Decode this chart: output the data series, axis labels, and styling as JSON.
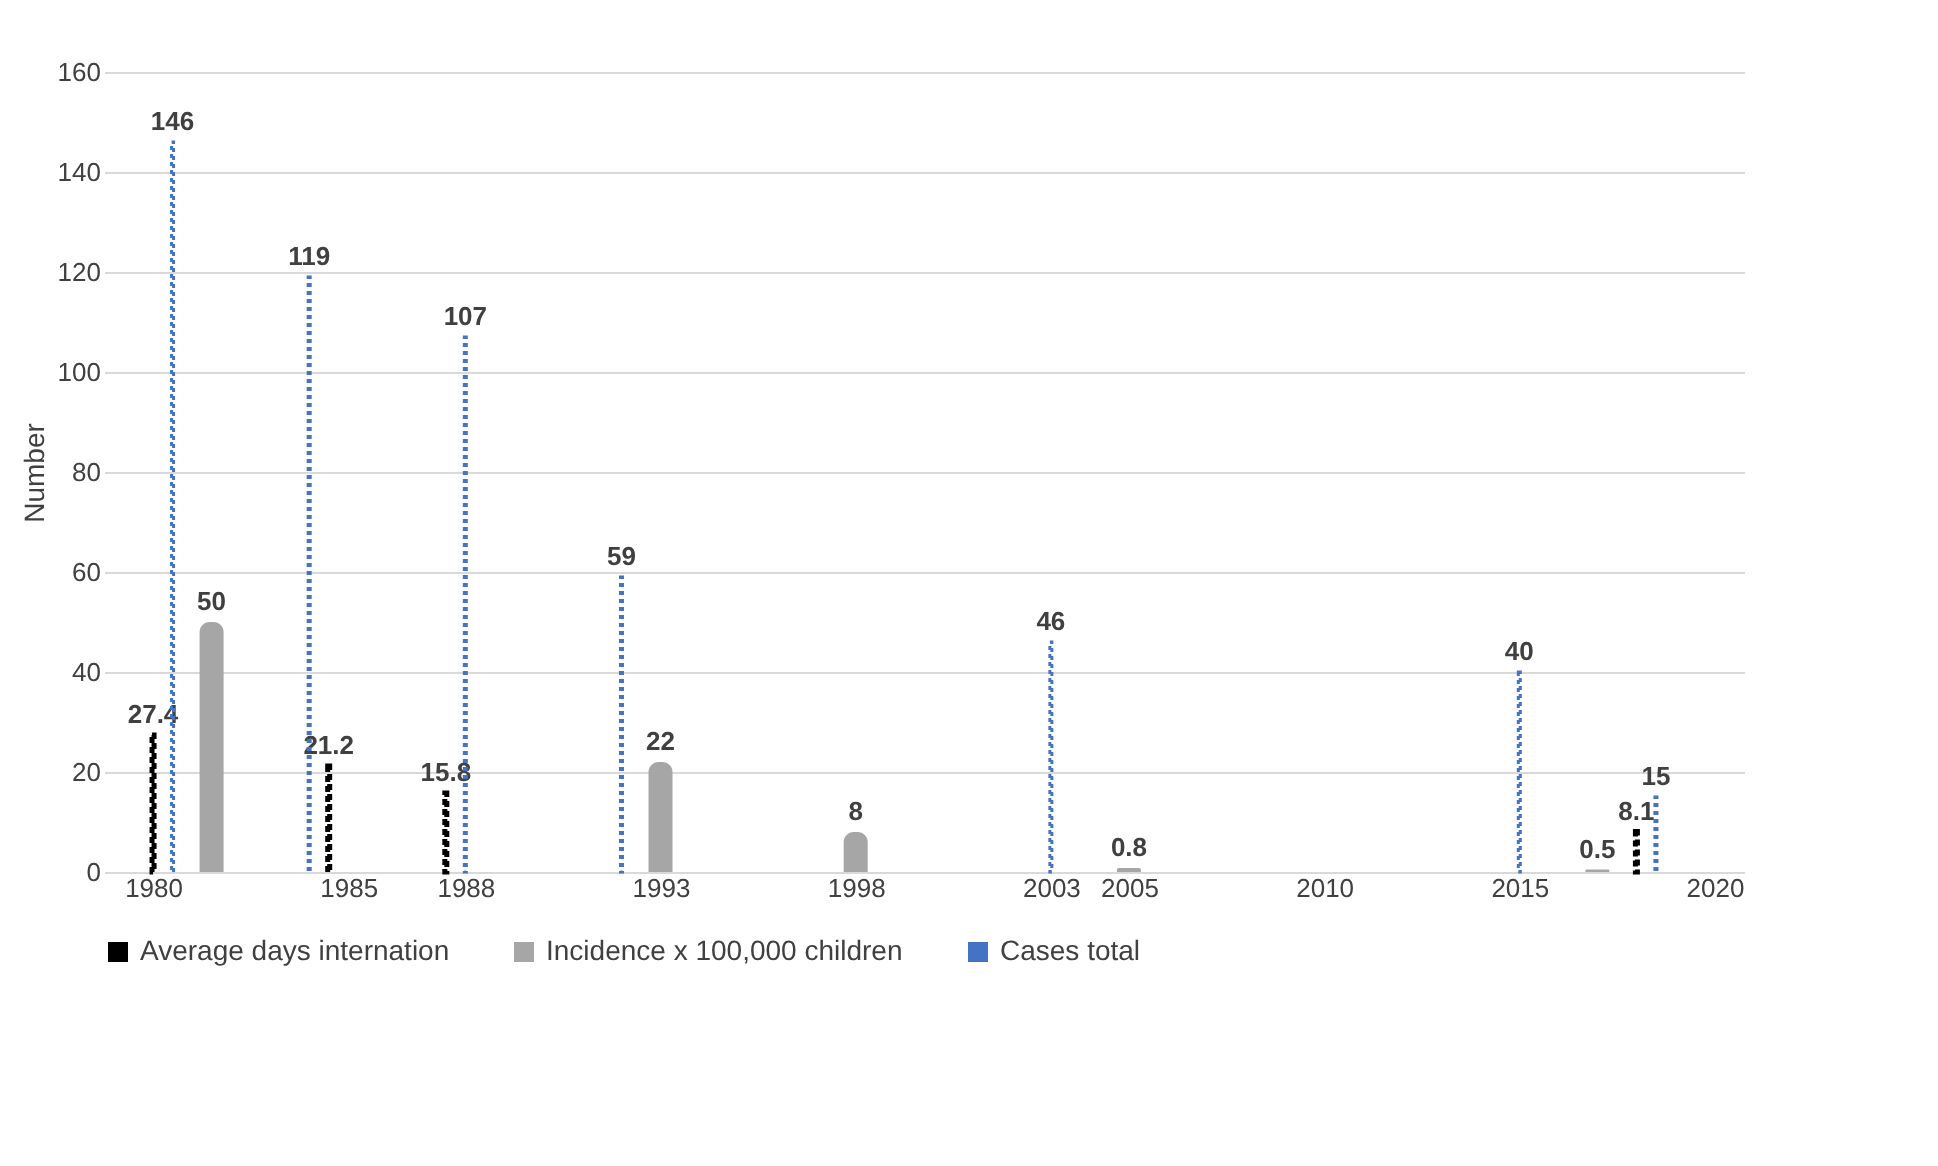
{
  "chart_data": {
    "type": "bar",
    "ylabel": "Number",
    "series": [
      {
        "name": "Average days internation",
        "color": "#000000",
        "line_style": "dashed",
        "x": [
          1980,
          1984.5,
          1987.5,
          2018
        ],
        "values": [
          27.4,
          21.2,
          15.8,
          8.1
        ]
      },
      {
        "name": "Incidence x 100,000 children",
        "color": "#a6a6a6",
        "line_style": "solid",
        "x": [
          1981.5,
          1993,
          1998,
          2005,
          2017
        ],
        "values": [
          50,
          22,
          8,
          0.8,
          0.5
        ]
      },
      {
        "name": "Cases total",
        "color": "#4472c4",
        "line_style": "dotted",
        "x": [
          1980.5,
          1984,
          1988,
          1992,
          2003,
          2015,
          2018.5
        ],
        "values": [
          146,
          119,
          107,
          59,
          46,
          40,
          15
        ]
      }
    ],
    "xlim": [
      1979,
      2020.5
    ],
    "xticks": [
      1980,
      1985,
      1988,
      1993,
      1998,
      2003,
      2005,
      2010,
      2015,
      2020
    ],
    "ylim": [
      0,
      160
    ],
    "yticks": [
      0,
      20,
      40,
      60,
      80,
      100,
      120,
      140,
      160
    ],
    "grid": "y",
    "legend": "bottom",
    "data_labels": true
  }
}
